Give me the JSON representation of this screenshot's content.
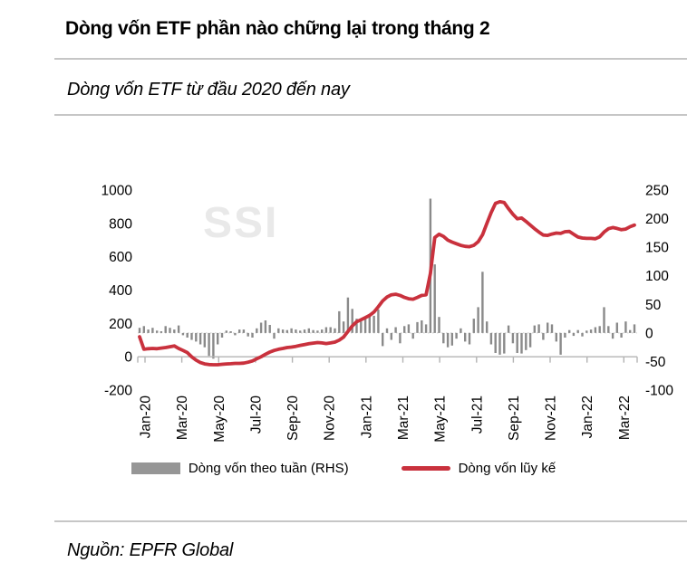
{
  "header": {
    "title": "Dòng vốn ETF phần nào chững lại trong tháng 2",
    "subtitle": "Dòng vốn ETF từ đầu 2020 đến nay"
  },
  "source": {
    "label": "Nguồn: EPFR Global"
  },
  "watermark": "SSI",
  "colors": {
    "line_red": "#c9313d",
    "bar_gray": "#8a8a8a",
    "legend_bar_gray": "#969696",
    "axis_gray": "#b3b3b3",
    "dotted_baseline_gray": "#cccccc",
    "rule_gray": "#c6c6c6",
    "watermark_gray": "#e9e9e9",
    "text_black": "#000000"
  },
  "chart_data": {
    "type": "combo",
    "title": "Dòng vốn ETF từ đầu 2020 đến nay",
    "x_unit": "week",
    "x_tick_labels": [
      "Jan-20",
      "Mar-20",
      "May-20",
      "Jul-20",
      "Sep-20",
      "Nov-20",
      "Jan-21",
      "Mar-21",
      "May-21",
      "Jul-21",
      "Sep-21",
      "Nov-21",
      "Jan-22",
      "Mar-22"
    ],
    "left_axis": {
      "ticks": [
        1000,
        800,
        600,
        400,
        200,
        0,
        -200
      ],
      "range": [
        -200,
        1000
      ]
    },
    "right_axis": {
      "ticks": [
        250,
        200,
        150,
        100,
        50,
        0,
        -50,
        -100
      ],
      "range": [
        -100,
        250
      ]
    },
    "grid": "off",
    "legend_position": "bottom",
    "series": [
      {
        "name": "Dòng vốn theo tuần (RHS)",
        "type": "bar",
        "axis": "right",
        "color": "#8a8a8a",
        "values": [
          9,
          12,
          6,
          9,
          4,
          3,
          12,
          9,
          6,
          13,
          -4,
          -8,
          -12,
          -15,
          -20,
          -25,
          -40,
          -45,
          -20,
          -8,
          4,
          3,
          -4,
          6,
          6,
          -6,
          -8,
          8,
          18,
          22,
          14,
          -10,
          8,
          6,
          5,
          8,
          6,
          4,
          6,
          8,
          5,
          4,
          6,
          10,
          10,
          8,
          38,
          20,
          62,
          42,
          25,
          20,
          28,
          32,
          30,
          41,
          -23,
          8,
          -12,
          10,
          -18,
          12,
          15,
          -10,
          19,
          22,
          15,
          235,
          120,
          28,
          -18,
          -25,
          -22,
          -10,
          8,
          -15,
          -20,
          25,
          45,
          107,
          20,
          -20,
          -35,
          -38,
          -36,
          13,
          -18,
          -35,
          -36,
          -30,
          -25,
          13,
          15,
          -12,
          18,
          15,
          -15,
          -38,
          -8,
          5,
          -5,
          5,
          -6,
          4,
          6,
          10,
          12,
          45,
          12,
          -10,
          18,
          -8,
          20,
          5,
          15
        ]
      },
      {
        "name": "Dòng vốn lũy kế",
        "type": "line",
        "axis": "left",
        "color": "#c9313d",
        "values": [
          120,
          45,
          48,
          50,
          48,
          52,
          55,
          60,
          65,
          50,
          38,
          25,
          0,
          -20,
          -35,
          -43,
          -47,
          -48,
          -48,
          -45,
          -43,
          -42,
          -40,
          -40,
          -38,
          -33,
          -25,
          -12,
          0,
          15,
          28,
          38,
          45,
          50,
          55,
          58,
          62,
          68,
          73,
          78,
          82,
          85,
          83,
          79,
          83,
          88,
          100,
          118,
          152,
          185,
          210,
          222,
          235,
          248,
          268,
          300,
          335,
          358,
          372,
          375,
          368,
          356,
          348,
          345,
          356,
          368,
          372,
          500,
          715,
          735,
          722,
          700,
          688,
          678,
          668,
          662,
          660,
          668,
          690,
          732,
          800,
          865,
          920,
          930,
          925,
          888,
          855,
          828,
          832,
          812,
          790,
          768,
          748,
          730,
          728,
          736,
          742,
          740,
          750,
          752,
          735,
          718,
          712,
          710,
          710,
          708,
          720,
          748,
          768,
          775,
          770,
          762,
          766,
          780,
          790
        ]
      }
    ]
  }
}
